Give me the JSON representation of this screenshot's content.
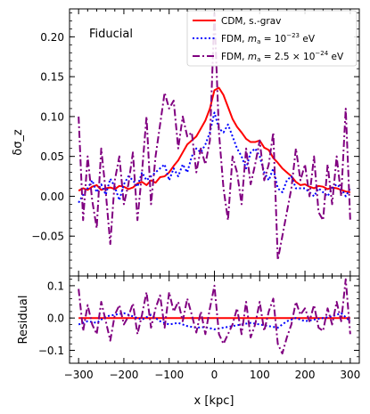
{
  "chart_data": [
    {
      "type": "line",
      "panel": "main",
      "annotation": "Fiducial",
      "xlabel": "x [kpc]",
      "ylabel": "δσ_z",
      "xlim": [
        -320,
        320
      ],
      "ylim": [
        -0.1,
        0.235
      ],
      "xticks": [
        -300,
        -200,
        -100,
        0,
        100,
        200,
        300
      ],
      "xtick_labels": [
        "−300",
        "−200",
        "−100",
        "0",
        "100",
        "200",
        "300"
      ],
      "yticks": [
        -0.05,
        0.0,
        0.05,
        0.1,
        0.15,
        0.2
      ],
      "ytick_labels": [
        "−0.05",
        "0.00",
        "0.05",
        "0.10",
        "0.15",
        "0.20"
      ],
      "grid": false,
      "legend_position": "top-right",
      "series": [
        {
          "name": "CDM, s.-grav",
          "style": "solid",
          "color": "#ff0000",
          "x": [
            -300,
            -290,
            -280,
            -270,
            -260,
            -250,
            -240,
            -230,
            -220,
            -210,
            -200,
            -190,
            -180,
            -170,
            -160,
            -150,
            -140,
            -130,
            -120,
            -110,
            -100,
            -90,
            -80,
            -70,
            -60,
            -50,
            -40,
            -30,
            -20,
            -10,
            0,
            10,
            20,
            30,
            40,
            50,
            60,
            70,
            80,
            90,
            100,
            110,
            120,
            130,
            140,
            150,
            160,
            170,
            180,
            190,
            200,
            210,
            220,
            230,
            240,
            250,
            260,
            270,
            280,
            290,
            300
          ],
          "y": [
            0.007,
            0.01,
            0.008,
            0.012,
            0.014,
            0.008,
            0.01,
            0.011,
            0.009,
            0.013,
            0.012,
            0.009,
            0.011,
            0.016,
            0.018,
            0.014,
            0.02,
            0.017,
            0.024,
            0.025,
            0.03,
            0.038,
            0.045,
            0.055,
            0.065,
            0.07,
            0.075,
            0.085,
            0.095,
            0.11,
            0.133,
            0.136,
            0.127,
            0.112,
            0.097,
            0.087,
            0.08,
            0.072,
            0.068,
            0.068,
            0.07,
            0.061,
            0.058,
            0.048,
            0.042,
            0.035,
            0.03,
            0.025,
            0.018,
            0.014,
            0.015,
            0.012,
            0.01,
            0.013,
            0.012,
            0.009,
            0.011,
            0.01,
            0.008,
            0.006,
            0.005
          ]
        },
        {
          "name": "FDM, m_a = 10^-23 eV",
          "style": "dotted",
          "color": "#0000ff",
          "x": [
            -300,
            -290,
            -280,
            -270,
            -260,
            -250,
            -240,
            -230,
            -220,
            -210,
            -200,
            -190,
            -180,
            -170,
            -160,
            -150,
            -140,
            -130,
            -120,
            -110,
            -100,
            -90,
            -80,
            -70,
            -60,
            -50,
            -40,
            -30,
            -20,
            -10,
            0,
            10,
            20,
            30,
            40,
            50,
            60,
            70,
            80,
            90,
            100,
            110,
            120,
            130,
            140,
            150,
            160,
            170,
            180,
            190,
            200,
            210,
            220,
            230,
            240,
            250,
            260,
            270,
            280,
            290,
            300
          ],
          "y": [
            -0.008,
            0.002,
            0.01,
            0.02,
            0.005,
            0.015,
            0.002,
            0.022,
            0.012,
            -0.005,
            0.015,
            0.025,
            0.02,
            0.012,
            0.03,
            0.02,
            0.025,
            0.03,
            0.035,
            0.04,
            0.02,
            0.035,
            0.025,
            0.04,
            0.03,
            0.05,
            0.06,
            0.055,
            0.065,
            0.08,
            0.105,
            0.085,
            0.08,
            0.09,
            0.075,
            0.06,
            0.05,
            0.035,
            0.055,
            0.06,
            0.05,
            0.03,
            0.02,
            0.035,
            0.01,
            0.005,
            0.02,
            0.025,
            0.01,
            0.01,
            0.01,
            0.005,
            0.0,
            0.01,
            0.005,
            0.0,
            0.01,
            0.015,
            0.01,
            0.0,
            0.01
          ]
        },
        {
          "name": "FDM, m_a = 2.5 × 10^-24 eV",
          "style": "dashdot",
          "color": "#800080",
          "x": [
            -300,
            -290,
            -280,
            -270,
            -260,
            -250,
            -240,
            -230,
            -220,
            -210,
            -200,
            -190,
            -180,
            -170,
            -160,
            -150,
            -140,
            -130,
            -120,
            -110,
            -100,
            -90,
            -80,
            -70,
            -60,
            -50,
            -40,
            -30,
            -20,
            -10,
            0,
            10,
            20,
            30,
            40,
            50,
            60,
            70,
            80,
            90,
            100,
            110,
            120,
            130,
            140,
            150,
            160,
            170,
            180,
            190,
            200,
            210,
            220,
            230,
            240,
            250,
            260,
            270,
            280,
            290,
            300
          ],
          "y": [
            0.1,
            -0.03,
            0.05,
            -0.005,
            -0.04,
            0.06,
            0.005,
            -0.06,
            0.02,
            0.05,
            -0.01,
            0.015,
            0.055,
            -0.03,
            0.03,
            0.1,
            -0.01,
            0.05,
            0.09,
            0.13,
            0.11,
            0.12,
            0.06,
            0.1,
            0.075,
            0.08,
            0.03,
            0.06,
            0.04,
            0.07,
            0.23,
            0.08,
            0.01,
            -0.03,
            0.05,
            0.03,
            -0.01,
            0.06,
            0.015,
            0.04,
            0.07,
            0.02,
            0.04,
            0.08,
            -0.08,
            -0.05,
            -0.02,
            0.01,
            0.06,
            0.02,
            0.04,
            0.0,
            0.05,
            -0.02,
            -0.03,
            0.04,
            -0.01,
            0.05,
            0.0,
            0.11,
            -0.03
          ]
        }
      ]
    },
    {
      "type": "line",
      "panel": "residual",
      "xlabel": "x [kpc]",
      "ylabel": "Residual",
      "xlim": [
        -320,
        320
      ],
      "ylim": [
        -0.14,
        0.13
      ],
      "xticks": [
        -300,
        -200,
        -100,
        0,
        100,
        200,
        300
      ],
      "xtick_labels": [
        "−300",
        "−200",
        "−100",
        "0",
        "100",
        "200",
        "300"
      ],
      "yticks": [
        -0.1,
        0.0,
        0.1
      ],
      "ytick_labels": [
        "−0.1",
        "0.0",
        "0.1"
      ],
      "grid": false,
      "series": [
        {
          "style": "solid",
          "color": "#ff0000",
          "x": [
            -300,
            300
          ],
          "y": [
            0.0,
            0.0
          ]
        },
        {
          "style": "dotted",
          "color": "#0000ff",
          "x": [
            -300,
            -280,
            -260,
            -240,
            -220,
            -200,
            -180,
            -160,
            -140,
            -120,
            -100,
            -80,
            -60,
            -40,
            -20,
            0,
            20,
            40,
            60,
            80,
            100,
            120,
            140,
            160,
            180,
            200,
            220,
            240,
            260,
            280,
            300
          ],
          "y": [
            -0.02,
            -0.01,
            -0.015,
            0.005,
            0.01,
            0.015,
            0.005,
            -0.005,
            0.01,
            -0.01,
            -0.02,
            -0.015,
            -0.025,
            -0.03,
            -0.028,
            -0.035,
            -0.03,
            -0.025,
            -0.02,
            -0.015,
            -0.02,
            -0.025,
            -0.03,
            -0.01,
            0.0,
            -0.01,
            -0.005,
            0.0,
            0.005,
            0.015,
            -0.01
          ]
        },
        {
          "style": "dashdot",
          "color": "#800080",
          "x": [
            -300,
            -290,
            -280,
            -270,
            -260,
            -250,
            -240,
            -230,
            -220,
            -210,
            -200,
            -190,
            -180,
            -170,
            -160,
            -150,
            -140,
            -130,
            -120,
            -110,
            -100,
            -90,
            -80,
            -70,
            -60,
            -50,
            -40,
            -30,
            -20,
            -10,
            0,
            10,
            20,
            30,
            40,
            50,
            60,
            70,
            80,
            90,
            100,
            110,
            120,
            130,
            140,
            150,
            160,
            170,
            180,
            190,
            200,
            210,
            220,
            230,
            240,
            250,
            260,
            270,
            280,
            290,
            300
          ],
          "y": [
            0.09,
            -0.04,
            0.04,
            -0.02,
            -0.05,
            0.05,
            -0.01,
            -0.07,
            0.01,
            0.04,
            -0.02,
            0.005,
            0.045,
            -0.05,
            0.01,
            0.08,
            -0.03,
            0.03,
            0.07,
            -0.03,
            0.08,
            0.02,
            0.05,
            -0.01,
            0.06,
            0.01,
            -0.045,
            0.02,
            -0.05,
            0.03,
            0.1,
            -0.05,
            -0.08,
            -0.05,
            -0.02,
            0.03,
            -0.05,
            0.05,
            -0.06,
            -0.02,
            0.05,
            -0.04,
            0.02,
            0.06,
            -0.08,
            -0.11,
            -0.06,
            -0.02,
            0.05,
            0.01,
            0.03,
            -0.01,
            0.04,
            -0.03,
            -0.04,
            0.03,
            -0.02,
            0.05,
            -0.01,
            0.12,
            -0.05
          ]
        }
      ]
    }
  ]
}
